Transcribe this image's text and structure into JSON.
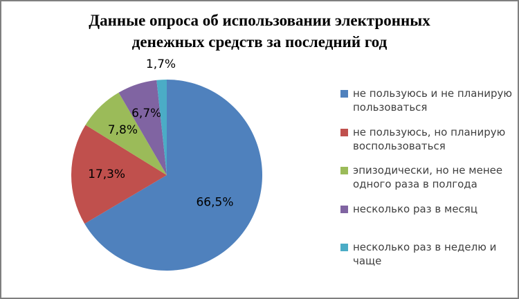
{
  "chart_data": {
    "type": "pie",
    "title": "Данные опроса об использовании электронных денежных средств за последний год",
    "categories": [
      "не пользуюсь и не планирую пользоваться",
      "не пользуюсь, но планирую воспользоваться",
      "эпизодически, но не менее одного раза в полгода",
      "несколько раз в месяц",
      "несколько раз в неделю и чаще"
    ],
    "values": [
      66.5,
      17.3,
      7.8,
      6.7,
      1.7
    ],
    "data_labels": [
      "66,5%",
      "17,3%",
      "7,8%",
      "6,7%",
      "1,7%"
    ],
    "colors": [
      "#4F81BD",
      "#C0504D",
      "#9BBB59",
      "#8064A2",
      "#4BACC6"
    ],
    "start_angle_deg": 0,
    "direction": "clockwise",
    "legend_position": "right",
    "label_color": "#000000",
    "legend_text_color": "#3f3f3f",
    "background": "#FFFFFF",
    "border_color": "#7f7f7f"
  }
}
